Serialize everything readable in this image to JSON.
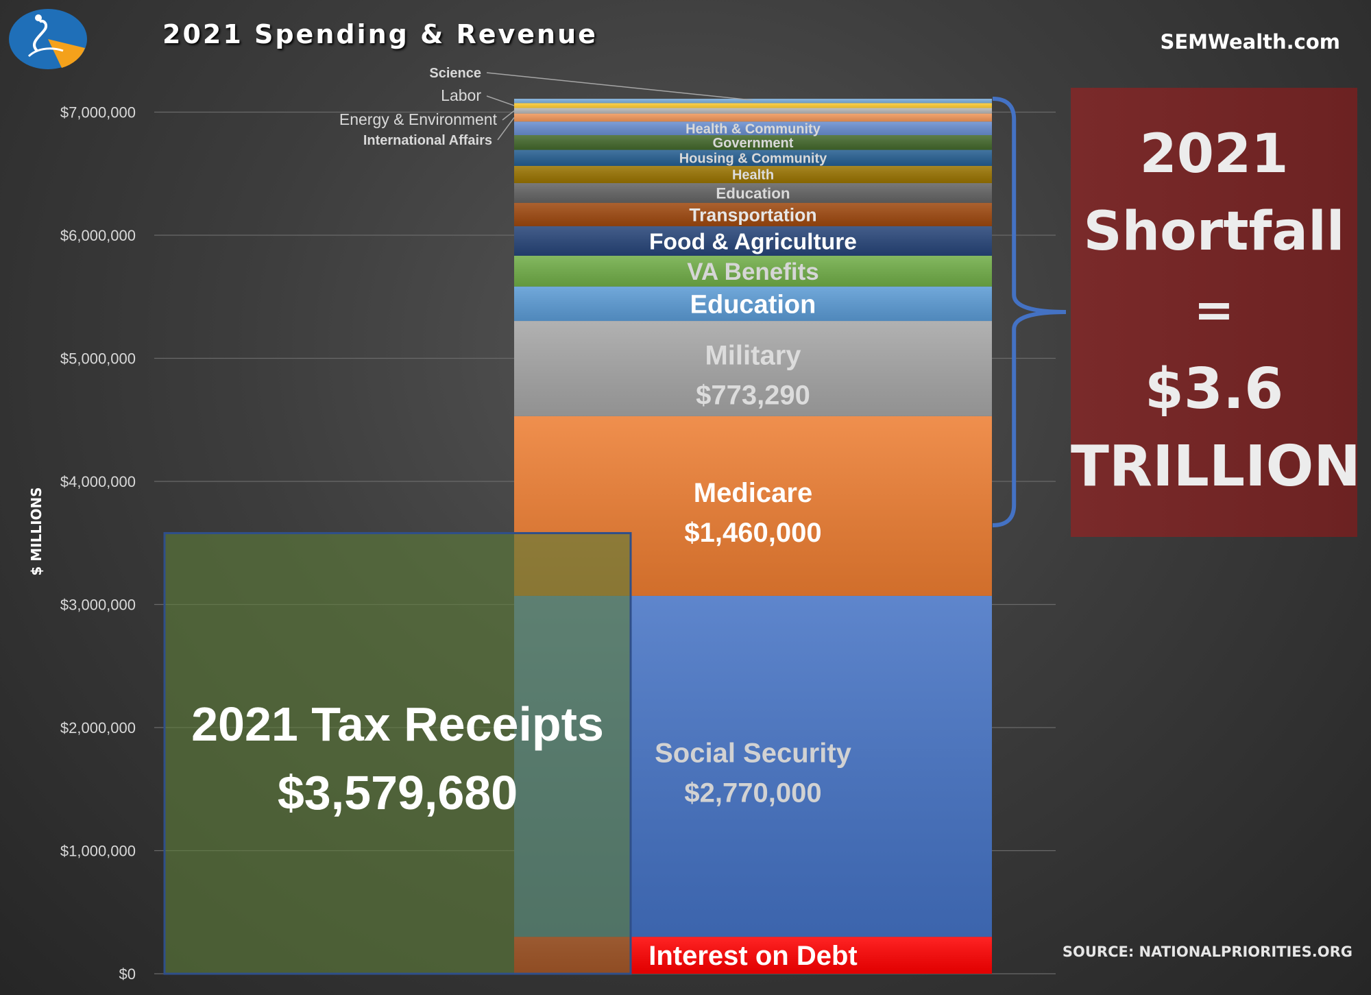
{
  "title": "2021 Spending & Revenue",
  "site": "SEMWealth.com",
  "source": "SOURCE: NATIONALPRIORITIES.ORG",
  "shortfall": {
    "line1": "2021",
    "line2": "Shortfall",
    "line3": "=",
    "line4": "$3.6",
    "line5": "TRILLION"
  },
  "colors": {
    "background": "#3d3d3d",
    "receipts_box": "#5f7f3a",
    "shortfall_box": "#722525",
    "brace": "#4472c4"
  },
  "chart_data": {
    "type": "bar",
    "ylabel": "$ MILLIONS",
    "ylim": [
      0,
      7000000
    ],
    "yticks": [
      "$0",
      "$1,000,000",
      "$2,000,000",
      "$3,000,000",
      "$4,000,000",
      "$5,000,000",
      "$6,000,000",
      "$7,000,000"
    ],
    "series": [
      {
        "name": "2021 Tax Receipts",
        "label_lines": [
          "2021 Tax Receipts",
          "$3,579,680"
        ],
        "value": 3579680,
        "color": "#5e7d3a"
      },
      {
        "name": "Spending",
        "stack": [
          {
            "label": "Interest on Debt",
            "value_text": "",
            "value": 300000,
            "color": "#ff0000",
            "text_color": "#ffffff"
          },
          {
            "label": "Social Security",
            "value_text": "$2,770,000",
            "value": 2770000,
            "color": "#4472c4",
            "text_color": "#d2d2d2"
          },
          {
            "label": "Medicare",
            "value_text": "$1,460,000",
            "value": 1460000,
            "color": "#ed7d31",
            "text_color": "#ffffff"
          },
          {
            "label": "Military",
            "value_text": "$773,290",
            "value": 773290,
            "color": "#a5a5a5",
            "text_color": "#dcdcdc"
          },
          {
            "label": "Education",
            "value_text": "",
            "value": 280000,
            "color": "#5b9bd5",
            "text_color": "#ffffff"
          },
          {
            "label": "VA Benefits",
            "value_text": "",
            "value": 250000,
            "color": "#70ad47",
            "text_color": "#d6d6d6"
          },
          {
            "label": "Food & Agriculture",
            "value_text": "",
            "value": 240000,
            "color": "#264478",
            "text_color": "#ffffff"
          },
          {
            "label": "Transportation",
            "value_text": "",
            "value": 190000,
            "color": "#9e480e",
            "text_color": "#e6e6e6"
          },
          {
            "label": "Education",
            "value_text": "",
            "value": 160000,
            "color": "#636363",
            "text_color": "#d9d9d9"
          },
          {
            "label": "Health",
            "value_text": "",
            "value": 140000,
            "color": "#997300",
            "text_color": "#dddddd"
          },
          {
            "label": "Housing & Community",
            "value_text": "",
            "value": 130000,
            "color": "#255e91",
            "text_color": "#d9d9d9"
          },
          {
            "label": "Government",
            "value_text": "",
            "value": 120000,
            "color": "#43682b",
            "text_color": "#d9d9d9"
          },
          {
            "label": "Health & Community",
            "value_text": "",
            "value": 110000,
            "color": "#698ed0",
            "text_color": "#d9d9d9"
          },
          {
            "label": "International Affairs",
            "value_text": "",
            "value": 65000,
            "color": "#f1975a",
            "text_color": "#d9d9d9"
          },
          {
            "label": "Energy & Environment",
            "value_text": "",
            "value": 45000,
            "color": "#b7b7b7",
            "text_color": "#d9d9d9"
          },
          {
            "label": "Labor",
            "value_text": "",
            "value": 40000,
            "color": "#ffcd33",
            "text_color": "#d9d9d9"
          },
          {
            "label": "Science",
            "value_text": "",
            "value": 35000,
            "color": "#7cafdd",
            "text_color": "#ffffff"
          }
        ]
      }
    ]
  }
}
